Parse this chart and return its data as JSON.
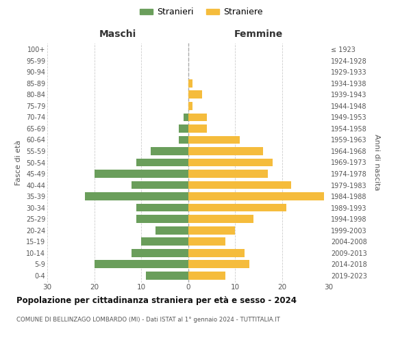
{
  "age_groups": [
    "0-4",
    "5-9",
    "10-14",
    "15-19",
    "20-24",
    "25-29",
    "30-34",
    "35-39",
    "40-44",
    "45-49",
    "50-54",
    "55-59",
    "60-64",
    "65-69",
    "70-74",
    "75-79",
    "80-84",
    "85-89",
    "90-94",
    "95-99",
    "100+"
  ],
  "birth_years": [
    "2019-2023",
    "2014-2018",
    "2009-2013",
    "2004-2008",
    "1999-2003",
    "1994-1998",
    "1989-1993",
    "1984-1988",
    "1979-1983",
    "1974-1978",
    "1969-1973",
    "1964-1968",
    "1959-1963",
    "1954-1958",
    "1949-1953",
    "1944-1948",
    "1939-1943",
    "1934-1938",
    "1929-1933",
    "1924-1928",
    "≤ 1923"
  ],
  "maschi": [
    9,
    20,
    12,
    10,
    7,
    11,
    11,
    22,
    12,
    20,
    11,
    8,
    2,
    2,
    1,
    0,
    0,
    0,
    0,
    0,
    0
  ],
  "femmine": [
    8,
    13,
    12,
    8,
    10,
    14,
    21,
    29,
    22,
    17,
    18,
    16,
    11,
    4,
    4,
    1,
    3,
    1,
    0,
    0,
    0
  ],
  "color_maschi": "#6a9e5b",
  "color_femmine": "#f5bc3c",
  "title": "Popolazione per cittadinanza straniera per età e sesso - 2024",
  "subtitle": "COMUNE DI BELLINZAGO LOMBARDO (MI) - Dati ISTAT al 1° gennaio 2024 - TUTTITALIA.IT",
  "xlabel_left": "Maschi",
  "xlabel_right": "Femmine",
  "ylabel_left": "Fasce di età",
  "ylabel_right": "Anni di nascita",
  "legend_maschi": "Stranieri",
  "legend_femmine": "Straniere",
  "xlim": 30,
  "background_color": "#ffffff",
  "grid_color": "#cccccc"
}
